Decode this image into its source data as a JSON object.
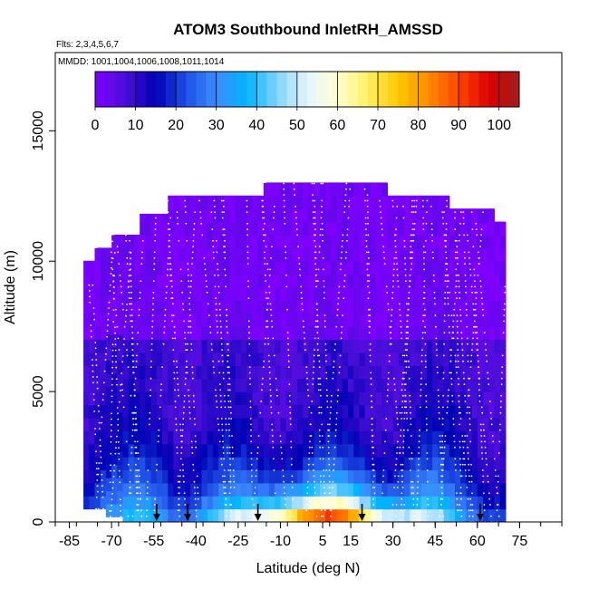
{
  "chart_data": {
    "type": "heatmap",
    "title": "ATOM3 Southbound InletRH_AMSSD",
    "subtitle_flights": "Flts: 2,3,4,5,6,7",
    "subtitle_dates": "MMDD: 1001,1004,1006,1008,1011,1014",
    "xlabel": "Latitude (deg N)",
    "ylabel": "Altitude (m)",
    "xlim": [
      -90,
      90
    ],
    "ylim": [
      0,
      18000
    ],
    "x_ticks": [
      -85,
      -70,
      -55,
      -40,
      -25,
      -10,
      5,
      15,
      30,
      45,
      60,
      75
    ],
    "x_tick_labels": [
      "-85",
      "-70",
      "-55",
      "-40",
      "-25",
      "-10",
      "5",
      "15",
      "30",
      "45",
      "60",
      "75"
    ],
    "y_ticks": [
      0,
      5000,
      10000,
      15000
    ],
    "y_tick_labels": [
      "0",
      "5000",
      "10000",
      "15000"
    ],
    "colorbar": {
      "ticks": [
        0,
        10,
        20,
        30,
        40,
        50,
        60,
        70,
        80,
        90,
        100
      ],
      "tick_labels": [
        "0",
        "10",
        "20",
        "30",
        "40",
        "50",
        "60",
        "70",
        "80",
        "90",
        "100"
      ],
      "range": [
        0,
        105
      ]
    },
    "profile_markers_lat": [
      -54,
      -43,
      -18,
      19,
      61
    ],
    "ceiling_segments": [
      {
        "lat": [
          -80,
          -75
        ],
        "alt": 10000
      },
      {
        "lat": [
          -75,
          -69
        ],
        "alt": 10500
      },
      {
        "lat": [
          -69,
          -60
        ],
        "alt": 11000
      },
      {
        "lat": [
          -60,
          -50
        ],
        "alt": 11800
      },
      {
        "lat": [
          -50,
          -15
        ],
        "alt": 12500
      },
      {
        "lat": [
          -15,
          28
        ],
        "alt": 13000
      },
      {
        "lat": [
          28,
          50
        ],
        "alt": 12500
      },
      {
        "lat": [
          50,
          66
        ],
        "alt": 12000
      },
      {
        "lat": [
          66,
          70
        ],
        "alt": 11500
      }
    ],
    "rh_field_description": "RH (%) versus latitude and altitude; high values near surface in tropics",
    "colors": {
      "scale": [
        "#7f00ff",
        "#4a0fd8",
        "#0000b4",
        "#1e50e6",
        "#3c8cff",
        "#00b4ff",
        "#82d2ff",
        "#e6f5ff",
        "#ffffd2",
        "#fff064",
        "#ffc800",
        "#ff8c00",
        "#ff4600",
        "#dc0000",
        "#a01e1e"
      ]
    }
  }
}
